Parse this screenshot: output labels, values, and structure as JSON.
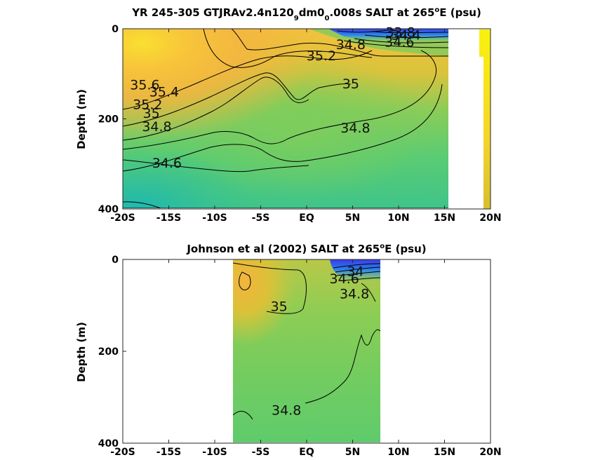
{
  "chart_data": [
    {
      "type": "heatmap",
      "title": {
        "main": "YR 245-305 GTJRAv2.4n120",
        "sub1": "9",
        "mid": "dm0",
        "sub2": "0",
        "tail": ".008s SALT at 265",
        "degree": "o",
        "unit": "E (psu)"
      },
      "ylabel": "Depth (m)",
      "xlabel": "",
      "x_tick_labels": [
        "-20S",
        "-15S",
        "-10S",
        "-5S",
        "EQ",
        "5N",
        "10N",
        "15N",
        "20N"
      ],
      "x_ticks": [
        -20,
        -15,
        -10,
        -5,
        0,
        5,
        10,
        15,
        20
      ],
      "y_tick_labels": [
        "0",
        "200",
        "400"
      ],
      "y_ticks": [
        0,
        200,
        400
      ],
      "xlim": [
        -20,
        20
      ],
      "ylim": [
        400,
        0
      ],
      "data_extent_lat": [
        -20,
        15.5
      ],
      "colorbar_strip_lat": [
        19,
        20
      ],
      "contour_labels": [
        {
          "text": "35.6",
          "lat": -17.6,
          "depth": 135
        },
        {
          "text": "35.4",
          "lat": -15.5,
          "depth": 150
        },
        {
          "text": "35.2",
          "lat": -17.3,
          "depth": 178
        },
        {
          "text": "35",
          "lat": -16.9,
          "depth": 198
        },
        {
          "text": "34.8",
          "lat": -16.3,
          "depth": 227
        },
        {
          "text": "34.6",
          "lat": -15.2,
          "depth": 308
        },
        {
          "text": "35.2",
          "lat": 1.6,
          "depth": 70
        },
        {
          "text": "34.8",
          "lat": 4.8,
          "depth": 45
        },
        {
          "text": "35",
          "lat": 4.8,
          "depth": 132
        },
        {
          "text": "34.8",
          "lat": 5.3,
          "depth": 230
        },
        {
          "text": "33.8",
          "lat": 10.2,
          "depth": 18
        },
        {
          "text": "34.4",
          "lat": 10.8,
          "depth": 24
        },
        {
          "text": "34.6",
          "lat": 10.1,
          "depth": 40
        }
      ]
    },
    {
      "type": "heatmap",
      "title": {
        "main": "Johnson et al (2002) SALT at 265",
        "degree": "o",
        "unit": "E (psu)"
      },
      "ylabel": "Depth (m)",
      "xlabel": "",
      "x_tick_labels": [
        "-20S",
        "-15S",
        "-10S",
        "-5S",
        "EQ",
        "5N",
        "10N",
        "15N",
        "20N"
      ],
      "x_ticks": [
        -20,
        -15,
        -10,
        -5,
        0,
        5,
        10,
        15,
        20
      ],
      "y_tick_labels": [
        "0",
        "200",
        "400"
      ],
      "y_ticks": [
        0,
        200,
        400
      ],
      "xlim": [
        -20,
        20
      ],
      "ylim": [
        400,
        0
      ],
      "data_extent_lat": [
        -8,
        8
      ],
      "contour_labels": [
        {
          "text": "35",
          "lat": -3.0,
          "depth": 112
        },
        {
          "text": "34.6",
          "lat": 4.1,
          "depth": 52
        },
        {
          "text": "34",
          "lat": 5.3,
          "depth": 36
        },
        {
          "text": "34.8",
          "lat": 5.2,
          "depth": 85
        },
        {
          "text": "34.8",
          "lat": -2.2,
          "depth": 338
        }
      ]
    }
  ]
}
